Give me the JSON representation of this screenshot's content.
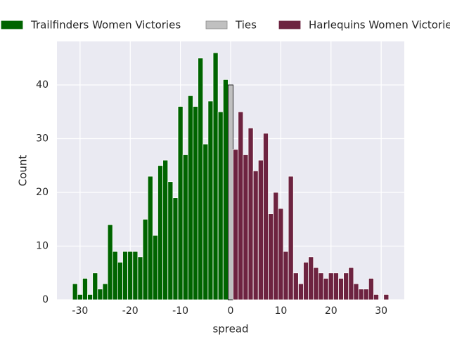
{
  "chart_data": {
    "type": "histogram",
    "xlabel": "spread",
    "ylabel": "Count",
    "xlim": [
      -34.6,
      34.6
    ],
    "ylim": [
      0,
      48.1
    ],
    "xticks": [
      -30,
      -20,
      -10,
      0,
      10,
      20,
      30
    ],
    "yticks": [
      0,
      10,
      20,
      30,
      40
    ],
    "grid": true,
    "legend": "upper center",
    "series": [
      {
        "name": "Trailfinders Women Victories",
        "color": "#006400",
        "edgecolor": "#ffffff",
        "bins": [
          -31.5,
          -30.5,
          -29.5,
          -28.5,
          -27.5,
          -26.5,
          -25.5,
          -24.5,
          -23.5,
          -22.5,
          -21.5,
          -20.5,
          -19.5,
          -18.5,
          -17.5,
          -16.5,
          -15.5,
          -14.5,
          -13.5,
          -12.5,
          -11.5,
          -10.5,
          -9.5,
          -8.5,
          -7.5,
          -6.5,
          -5.5,
          -4.5,
          -3.5,
          -2.5,
          -1.5,
          -0.5
        ],
        "values": [
          3,
          1,
          4,
          1,
          5,
          2,
          3,
          14,
          9,
          7,
          9,
          9,
          9,
          8,
          15,
          23,
          12,
          25,
          26,
          22,
          19,
          36,
          27,
          38,
          36,
          45,
          29,
          37,
          46,
          35,
          41
        ]
      },
      {
        "name": "Ties",
        "color": "#c0c0c0",
        "edgecolor": "#000000",
        "bins": [
          -0.5,
          0.5
        ],
        "values": [
          40
        ]
      },
      {
        "name": "Harlequins Women Victories",
        "color": "#6d2340",
        "edgecolor": "#ffffff",
        "bins": [
          0.5,
          1.5,
          2.5,
          3.5,
          4.5,
          5.5,
          6.5,
          7.5,
          8.5,
          9.5,
          10.5,
          11.5,
          12.5,
          13.5,
          14.5,
          15.5,
          16.5,
          17.5,
          18.5,
          19.5,
          20.5,
          21.5,
          22.5,
          23.5,
          24.5,
          25.5,
          26.5,
          27.5,
          28.5,
          29.5,
          30.5,
          31.5
        ],
        "values": [
          28,
          35,
          27,
          32,
          24,
          26,
          31,
          16,
          20,
          17,
          9,
          23,
          5,
          3,
          7,
          8,
          6,
          5,
          4,
          5,
          5,
          4,
          5,
          6,
          3,
          2,
          2,
          4,
          1,
          0,
          1
        ]
      }
    ]
  }
}
